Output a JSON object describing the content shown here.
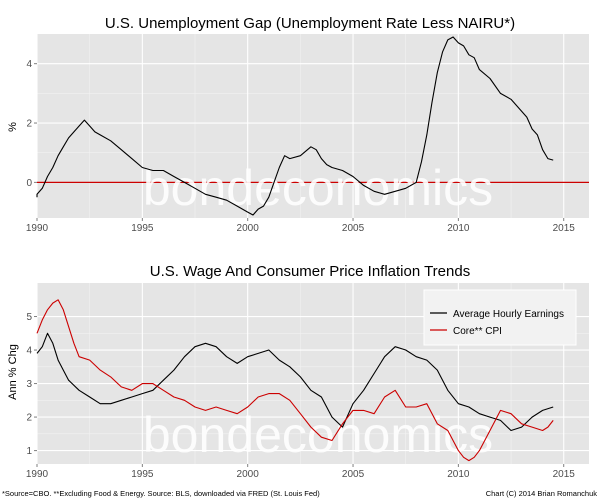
{
  "chart_data": [
    {
      "type": "line",
      "title": "U.S. Unemployment Gap (Unemployment Rate Less NAIRU*)",
      "xlabel": "",
      "ylabel": "%",
      "xlim": [
        1990,
        2015
      ],
      "ylim": [
        -1.2,
        5.0
      ],
      "x_ticks": [
        1990,
        1995,
        2000,
        2005,
        2010,
        2015
      ],
      "y_ticks": [
        0,
        2,
        4
      ],
      "grid": true,
      "reference_line": {
        "y": 0,
        "color": "#cc0000"
      },
      "series": [
        {
          "color": "#000000",
          "x": [
            1989.0,
            1989.5,
            1990.0,
            1990.25,
            1990.5,
            1990.75,
            1991.0,
            1991.25,
            1991.5,
            1991.75,
            1992.0,
            1992.25,
            1992.5,
            1992.75,
            1993.0,
            1993.5,
            1994.0,
            1994.5,
            1995.0,
            1995.5,
            1996.0,
            1996.5,
            1997.0,
            1997.5,
            1998.0,
            1998.5,
            1999.0,
            1999.5,
            2000.0,
            2000.25,
            2000.5,
            2000.75,
            2001.0,
            2001.25,
            2001.5,
            2001.75,
            2002.0,
            2002.5,
            2003.0,
            2003.25,
            2003.5,
            2003.75,
            2004.0,
            2004.5,
            2005.0,
            2005.5,
            2006.0,
            2006.5,
            2007.0,
            2007.5,
            2008.0,
            2008.25,
            2008.5,
            2008.75,
            2009.0,
            2009.25,
            2009.5,
            2009.75,
            2010.0,
            2010.25,
            2010.5,
            2010.75,
            2011.0,
            2011.5,
            2012.0,
            2012.5,
            2013.0,
            2013.25,
            2013.5,
            2013.75,
            2014.0,
            2014.25,
            2014.5
          ],
          "values": [
            -0.5,
            -0.5,
            -0.4,
            -0.2,
            0.2,
            0.5,
            0.9,
            1.2,
            1.5,
            1.7,
            1.9,
            2.1,
            1.9,
            1.7,
            1.6,
            1.4,
            1.1,
            0.8,
            0.5,
            0.4,
            0.4,
            0.2,
            0.0,
            -0.2,
            -0.4,
            -0.5,
            -0.6,
            -0.8,
            -1.0,
            -1.1,
            -0.9,
            -0.8,
            -0.5,
            0.0,
            0.5,
            0.9,
            0.8,
            0.9,
            1.2,
            1.1,
            0.8,
            0.6,
            0.5,
            0.4,
            0.2,
            -0.1,
            -0.3,
            -0.4,
            -0.3,
            -0.2,
            0.0,
            0.7,
            1.6,
            2.7,
            3.7,
            4.4,
            4.8,
            4.9,
            4.7,
            4.6,
            4.3,
            4.2,
            3.8,
            3.5,
            3.0,
            2.8,
            2.4,
            2.2,
            1.8,
            1.6,
            1.1,
            0.8,
            0.75
          ]
        }
      ]
    },
    {
      "type": "line",
      "title": "U.S. Wage And Consumer Price Inflation Trends",
      "xlabel": "",
      "ylabel": "Ann % Chg",
      "xlim": [
        1990,
        2015
      ],
      "ylim": [
        0.6,
        6.0
      ],
      "x_ticks": [
        1990,
        1995,
        2000,
        2005,
        2010,
        2015
      ],
      "y_ticks": [
        1,
        2,
        3,
        4,
        5
      ],
      "grid": true,
      "legend_placement": "top-right",
      "series": [
        {
          "name": "Average Hourly Earnings",
          "color": "#000000",
          "x": [
            1990.0,
            1990.25,
            1990.5,
            1990.75,
            1991.0,
            1991.25,
            1991.5,
            1992.0,
            1992.5,
            1993.0,
            1993.5,
            1994.0,
            1994.5,
            1995.0,
            1995.5,
            1996.0,
            1996.5,
            1997.0,
            1997.5,
            1998.0,
            1998.5,
            1999.0,
            1999.5,
            2000.0,
            2000.5,
            2001.0,
            2001.5,
            2002.0,
            2002.5,
            2003.0,
            2003.5,
            2004.0,
            2004.5,
            2005.0,
            2005.5,
            2006.0,
            2006.5,
            2007.0,
            2007.5,
            2008.0,
            2008.5,
            2009.0,
            2009.5,
            2010.0,
            2010.5,
            2011.0,
            2011.5,
            2012.0,
            2012.5,
            2013.0,
            2013.5,
            2014.0,
            2014.5
          ],
          "values": [
            3.9,
            4.1,
            4.5,
            4.2,
            3.7,
            3.4,
            3.1,
            2.8,
            2.6,
            2.4,
            2.4,
            2.5,
            2.6,
            2.7,
            2.8,
            3.1,
            3.4,
            3.8,
            4.1,
            4.2,
            4.1,
            3.8,
            3.6,
            3.8,
            3.9,
            4.0,
            3.7,
            3.5,
            3.2,
            2.8,
            2.6,
            2.0,
            1.7,
            2.4,
            2.8,
            3.3,
            3.8,
            4.1,
            4.0,
            3.8,
            3.7,
            3.4,
            2.8,
            2.4,
            2.3,
            2.1,
            2.0,
            1.9,
            1.6,
            1.7,
            2.0,
            2.2,
            2.3
          ]
        },
        {
          "name": "Core** CPI",
          "color": "#cc0000",
          "x": [
            1990.0,
            1990.25,
            1990.5,
            1990.75,
            1991.0,
            1991.25,
            1991.5,
            1991.75,
            1992.0,
            1992.5,
            1993.0,
            1993.5,
            1994.0,
            1994.5,
            1995.0,
            1995.5,
            1996.0,
            1996.5,
            1997.0,
            1997.5,
            1998.0,
            1998.5,
            1999.0,
            1999.5,
            2000.0,
            2000.5,
            2001.0,
            2001.5,
            2002.0,
            2002.5,
            2003.0,
            2003.5,
            2004.0,
            2004.5,
            2005.0,
            2005.5,
            2006.0,
            2006.5,
            2007.0,
            2007.5,
            2008.0,
            2008.5,
            2009.0,
            2009.5,
            2010.0,
            2010.25,
            2010.5,
            2010.75,
            2011.0,
            2011.5,
            2012.0,
            2012.5,
            2013.0,
            2013.5,
            2014.0,
            2014.25,
            2014.5
          ],
          "values": [
            4.5,
            4.9,
            5.2,
            5.4,
            5.5,
            5.2,
            4.7,
            4.2,
            3.8,
            3.7,
            3.4,
            3.2,
            2.9,
            2.8,
            3.0,
            3.0,
            2.8,
            2.6,
            2.5,
            2.3,
            2.2,
            2.3,
            2.2,
            2.1,
            2.3,
            2.6,
            2.7,
            2.7,
            2.5,
            2.1,
            1.7,
            1.4,
            1.3,
            1.8,
            2.2,
            2.2,
            2.1,
            2.6,
            2.8,
            2.3,
            2.3,
            2.4,
            1.8,
            1.6,
            1.0,
            0.8,
            0.7,
            0.8,
            1.0,
            1.6,
            2.2,
            2.1,
            1.8,
            1.7,
            1.6,
            1.7,
            1.9
          ]
        }
      ]
    }
  ],
  "watermark": "bondeconomics",
  "footnote_left": "*Source=CBO. **Excluding Food & Energy. Source: BLS, downloaded via FRED (St. Louis Fed)",
  "footnote_right": "Chart (C) 2014 Brian Romanchuk",
  "colors": {
    "panel_bg": "#e5e5e5",
    "grid": "#ffffff",
    "black_series": "#000000",
    "red_series": "#cc0000"
  }
}
